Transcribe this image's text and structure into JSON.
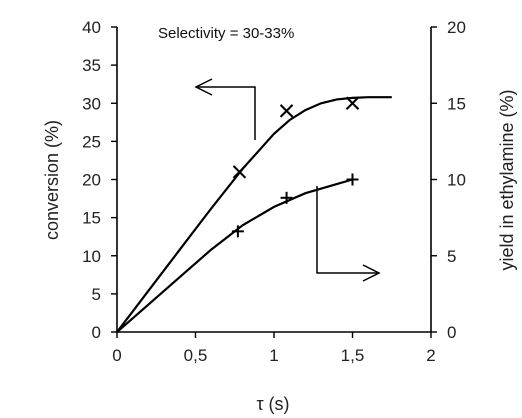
{
  "chart_data": {
    "type": "scatter",
    "xlabel": "τ (s)",
    "ylabel_left": "conversion (%)",
    "ylabel_right": "yield in ethylamine (%)",
    "annotation": "Selectivity = 30-33%",
    "xlim": [
      0,
      2
    ],
    "ylim_left": [
      0,
      40
    ],
    "ylim_right": [
      0,
      20
    ],
    "x_ticks": [
      "0",
      "0,5",
      "1",
      "1,5",
      "2"
    ],
    "x_tick_values": [
      0,
      0.5,
      1,
      1.5,
      2
    ],
    "y_left_ticks": [
      "0",
      "5",
      "10",
      "15",
      "20",
      "25",
      "30",
      "35",
      "40"
    ],
    "y_left_tick_values": [
      0,
      5,
      10,
      15,
      20,
      25,
      30,
      35,
      40
    ],
    "y_right_ticks": [
      "0",
      "5",
      "10",
      "15",
      "20"
    ],
    "y_right_tick_values": [
      0,
      5,
      10,
      15,
      20
    ],
    "grid": false,
    "series": [
      {
        "axis": "left",
        "marker": "x",
        "x": [
          0.78,
          1.08,
          1.5
        ],
        "y": [
          21,
          29,
          30
        ],
        "fit_x": [
          0,
          0.2,
          0.4,
          0.6,
          0.8,
          1.0,
          1.1,
          1.2,
          1.3,
          1.4,
          1.5,
          1.6,
          1.7,
          1.75
        ],
        "fit_y": [
          0,
          5.4,
          10.8,
          16.2,
          21.4,
          26.0,
          27.8,
          29.1,
          30.0,
          30.5,
          30.7,
          30.8,
          30.8,
          30.8
        ]
      },
      {
        "axis": "right",
        "marker": "+",
        "x": [
          0.77,
          1.08,
          1.5
        ],
        "y": [
          6.6,
          8.8,
          10
        ],
        "fit_x": [
          0,
          0.2,
          0.4,
          0.6,
          0.8,
          1.0,
          1.2,
          1.4,
          1.5
        ],
        "fit_y": [
          0,
          1.8,
          3.6,
          5.4,
          7.0,
          8.2,
          9.1,
          9.7,
          10.0
        ]
      }
    ]
  }
}
